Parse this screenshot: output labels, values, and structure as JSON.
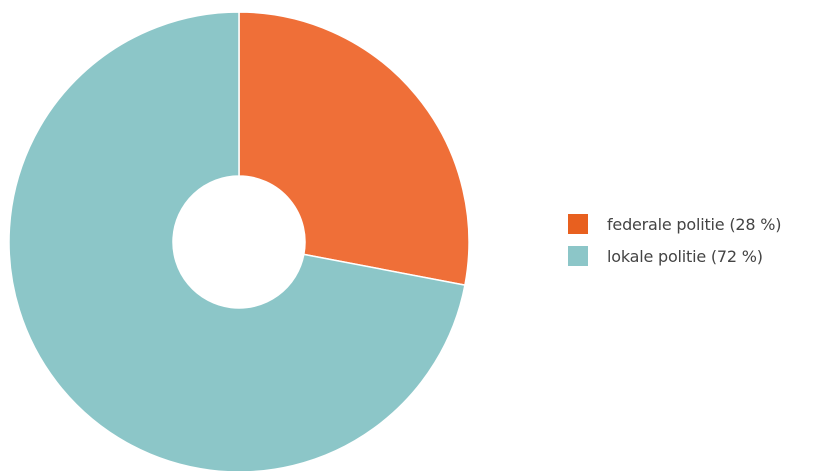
{
  "chart_data": {
    "type": "pie",
    "donut": true,
    "title": "",
    "slices": [
      {
        "label": "federale politie (28 %)",
        "value": 28,
        "color": "#EF6F38"
      },
      {
        "label": "lokale politie (72 %)",
        "value": 72,
        "color": "#8CC6C8"
      }
    ],
    "legend_placement": "right",
    "start_angle": "top",
    "direction": "clockwise"
  },
  "legend": {
    "items": [
      {
        "label": "federale politie (28 %)",
        "swatch_color": "#E8601F"
      },
      {
        "label": "lokale politie (72 %)",
        "swatch_color": "#8CC6C8"
      }
    ]
  }
}
